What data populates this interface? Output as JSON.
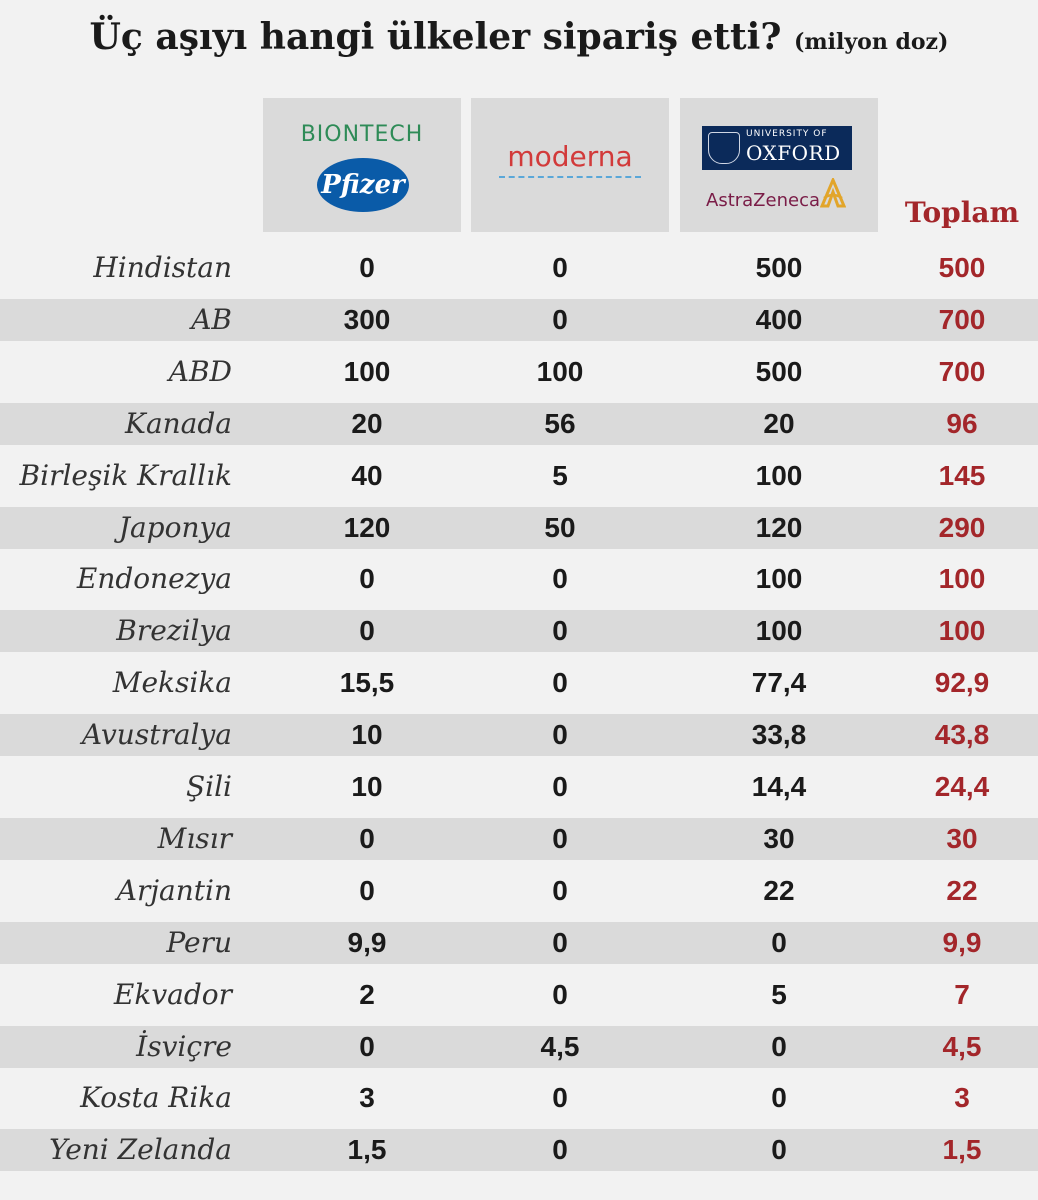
{
  "header": {
    "title": "Üç aşıyı hangi ülkeler sipariş etti?",
    "unit": "(milyon doz)"
  },
  "logos": {
    "biontech": "BIONTECH",
    "pfizer": "Pfizer",
    "moderna": "moderna",
    "oxford_small": "UNIVERSITY OF",
    "oxford": "OXFORD",
    "astrazeneca": "AstraZeneca"
  },
  "colors": {
    "total": "#a3262a",
    "row_shade": "#dadada",
    "background": "#f2f2f2"
  },
  "chart_data": {
    "type": "table",
    "columns": [
      "BioNTech/Pfizer",
      "Moderna",
      "Oxford/AstraZeneca",
      "Toplam"
    ],
    "total_label": "Toplam",
    "rows": [
      {
        "country": "Hindistan",
        "values": [
          "0",
          "0",
          "500",
          "500"
        ]
      },
      {
        "country": "AB",
        "values": [
          "300",
          "0",
          "400",
          "700"
        ]
      },
      {
        "country": "ABD",
        "values": [
          "100",
          "100",
          "500",
          "700"
        ]
      },
      {
        "country": "Kanada",
        "values": [
          "20",
          "56",
          "20",
          "96"
        ]
      },
      {
        "country": "Birleşik Krallık",
        "values": [
          "40",
          "5",
          "100",
          "145"
        ]
      },
      {
        "country": "Japonya",
        "values": [
          "120",
          "50",
          "120",
          "290"
        ]
      },
      {
        "country": "Endonezya",
        "values": [
          "0",
          "0",
          "100",
          "100"
        ]
      },
      {
        "country": "Brezilya",
        "values": [
          "0",
          "0",
          "100",
          "100"
        ]
      },
      {
        "country": "Meksika",
        "values": [
          "15,5",
          "0",
          "77,4",
          "92,9"
        ]
      },
      {
        "country": "Avustralya",
        "values": [
          "10",
          "0",
          "33,8",
          "43,8"
        ]
      },
      {
        "country": "Şili",
        "values": [
          "10",
          "0",
          "14,4",
          "24,4"
        ]
      },
      {
        "country": "Mısır",
        "values": [
          "0",
          "0",
          "30",
          "30"
        ]
      },
      {
        "country": "Arjantin",
        "values": [
          "0",
          "0",
          "22",
          "22"
        ]
      },
      {
        "country": "Peru",
        "values": [
          "9,9",
          "0",
          "0",
          "9,9"
        ]
      },
      {
        "country": "Ekvador",
        "values": [
          "2",
          "0",
          "5",
          "7"
        ]
      },
      {
        "country": "İsviçre",
        "values": [
          "0",
          "4,5",
          "0",
          "4,5"
        ]
      },
      {
        "country": "Kosta Rika",
        "values": [
          "3",
          "0",
          "0",
          "3"
        ]
      },
      {
        "country": "Yeni Zelanda",
        "values": [
          "1,5",
          "0",
          "0",
          "1,5"
        ]
      }
    ]
  }
}
